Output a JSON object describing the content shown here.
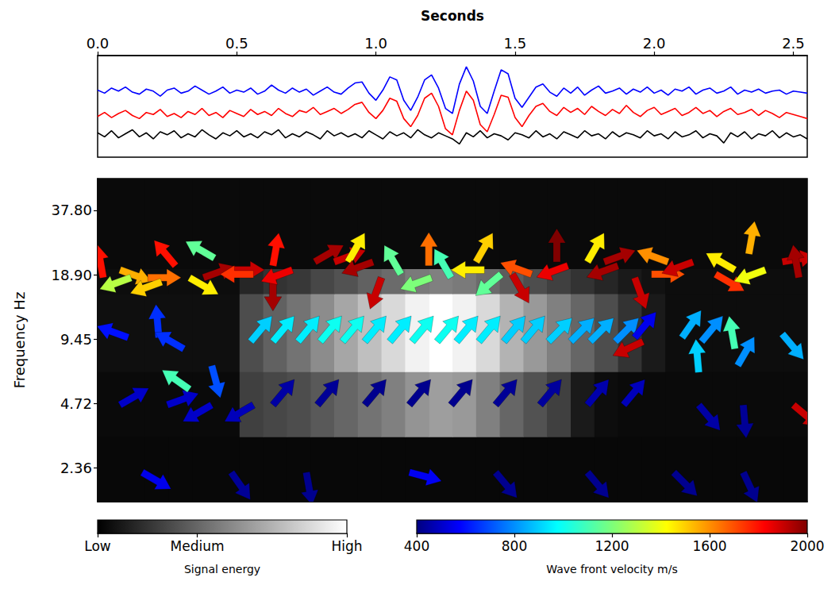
{
  "chart_data": [
    {
      "type": "line",
      "xlabel": "Seconds",
      "x": [
        0,
        0.025,
        0.05,
        0.075,
        0.1,
        0.125,
        0.15,
        0.175,
        0.2,
        0.225,
        0.25,
        0.275,
        0.3,
        0.325,
        0.35,
        0.375,
        0.4,
        0.425,
        0.45,
        0.475,
        0.5,
        0.525,
        0.55,
        0.575,
        0.6,
        0.625,
        0.65,
        0.675,
        0.7,
        0.725,
        0.75,
        0.775,
        0.8,
        0.825,
        0.85,
        0.875,
        0.9,
        0.925,
        0.95,
        0.975,
        1,
        1.025,
        1.05,
        1.075,
        1.1,
        1.125,
        1.15,
        1.175,
        1.2,
        1.225,
        1.25,
        1.275,
        1.3,
        1.325,
        1.35,
        1.375,
        1.4,
        1.425,
        1.45,
        1.475,
        1.5,
        1.525,
        1.55,
        1.575,
        1.6,
        1.625,
        1.65,
        1.675,
        1.7,
        1.725,
        1.75,
        1.775,
        1.8,
        1.825,
        1.85,
        1.875,
        1.9,
        1.925,
        1.95,
        1.975,
        2,
        2.025,
        2.05,
        2.075,
        2.1,
        2.125,
        2.15,
        2.175,
        2.2,
        2.225,
        2.25,
        2.275,
        2.3,
        2.325,
        2.35,
        2.375,
        2.4,
        2.425,
        2.45,
        2.475,
        2.5,
        2.525,
        2.55
      ],
      "xlim": [
        0,
        2.55
      ],
      "xticks": [
        {
          "value": 0,
          "label": "0.0"
        },
        0.5,
        {
          "value": 1,
          "label": "1.0"
        },
        1.5,
        {
          "value": 2,
          "label": "2.0"
        },
        2.5
      ],
      "ylim": [
        0,
        10
      ],
      "tick_labels": "x",
      "series": [
        {
          "color": "#0000ff",
          "values": [
            6.6,
            6.3,
            6.8,
            6.5,
            6.9,
            6.4,
            6.2,
            6.7,
            6.5,
            6.0,
            6.6,
            6.8,
            6.3,
            6.5,
            7.0,
            6.6,
            6.2,
            6.5,
            6.9,
            6.3,
            6.6,
            6.4,
            6.8,
            6.2,
            6.5,
            7.1,
            6.6,
            6.3,
            6.8,
            6.4,
            6.7,
            6.1,
            6.5,
            6.9,
            6.4,
            6.2,
            6.8,
            7.3,
            7.4,
            6.3,
            5.6,
            6.6,
            7.9,
            7.6,
            5.6,
            4.6,
            5.9,
            7.6,
            8.1,
            6.8,
            4.8,
            4.3,
            7.2,
            8.9,
            7.5,
            5.0,
            4.3,
            6.5,
            8.6,
            8.2,
            5.8,
            4.9,
            5.9,
            6.9,
            7.2,
            6.4,
            6.0,
            6.8,
            6.3,
            6.9,
            6.1,
            6.6,
            7.0,
            6.3,
            6.5,
            6.8,
            6.2,
            6.7,
            6.4,
            6.9,
            6.3,
            6.6,
            6.1,
            6.7,
            6.5,
            6.9,
            6.2,
            6.6,
            6.8,
            6.3,
            6.5,
            6.9,
            6.2,
            6.6,
            6.4,
            6.7,
            6.3,
            6.5,
            6.6,
            6.2,
            6.5,
            6.4,
            6.3
          ]
        },
        {
          "color": "#ff0000",
          "values": [
            4.0,
            4.4,
            3.9,
            4.3,
            4.6,
            4.1,
            3.8,
            4.4,
            4.2,
            4.7,
            4.0,
            4.3,
            3.9,
            4.5,
            4.2,
            4.8,
            4.1,
            4.4,
            3.9,
            4.6,
            4.3,
            4.0,
            4.7,
            4.2,
            4.5,
            4.1,
            4.8,
            4.3,
            4.0,
            4.6,
            4.4,
            4.9,
            4.2,
            4.5,
            4.8,
            4.3,
            4.7,
            5.2,
            5.4,
            4.4,
            3.8,
            4.6,
            5.8,
            5.5,
            3.8,
            3.0,
            4.1,
            5.8,
            6.3,
            5.0,
            2.8,
            2.2,
            4.6,
            6.5,
            5.6,
            3.2,
            2.5,
            4.2,
            6.1,
            5.9,
            3.9,
            3.0,
            4.1,
            5.0,
            5.3,
            4.5,
            4.1,
            4.9,
            4.4,
            4.8,
            4.2,
            5.0,
            4.5,
            4.1,
            4.7,
            4.3,
            5.1,
            4.4,
            4.0,
            4.6,
            4.9,
            4.2,
            4.5,
            4.8,
            4.1,
            4.4,
            4.9,
            4.3,
            4.6,
            4.0,
            4.5,
            4.8,
            4.2,
            4.4,
            4.7,
            4.1,
            4.6,
            4.3,
            3.9,
            4.4,
            4.2,
            4.0,
            3.8
          ]
        },
        {
          "color": "#000000",
          "values": [
            2.4,
            2.0,
            2.6,
            1.9,
            2.3,
            2.7,
            2.0,
            2.4,
            1.8,
            2.5,
            2.2,
            2.6,
            1.9,
            2.3,
            2.0,
            2.7,
            2.2,
            1.8,
            2.4,
            2.1,
            2.6,
            2.0,
            2.3,
            1.9,
            2.5,
            2.2,
            2.7,
            1.9,
            2.3,
            2.0,
            2.5,
            2.2,
            1.8,
            2.6,
            2.1,
            2.4,
            2.0,
            2.3,
            1.9,
            2.6,
            2.2,
            1.8,
            2.5,
            2.1,
            2.4,
            1.9,
            2.7,
            2.2,
            1.9,
            2.4,
            2.1,
            1.8,
            1.3,
            2.4,
            2.0,
            2.6,
            1.9,
            2.3,
            2.1,
            1.7,
            2.4,
            2.2,
            1.9,
            2.6,
            2.0,
            2.3,
            1.8,
            2.5,
            2.2,
            1.9,
            2.6,
            2.1,
            2.3,
            1.8,
            2.5,
            2.0,
            2.4,
            2.2,
            1.9,
            2.6,
            2.1,
            2.3,
            1.8,
            2.5,
            2.0,
            2.2,
            2.6,
            1.9,
            2.3,
            2.1,
            1.4,
            2.4,
            2.0,
            2.5,
            1.8,
            2.3,
            2.1,
            2.6,
            1.9,
            2.4,
            2.0,
            2.2,
            1.8
          ]
        }
      ]
    },
    {
      "type": "heatmap",
      "ylabel": "Frequency Hz",
      "xlim": [
        0,
        2.55
      ],
      "ylim": [
        1.64,
        53.2
      ],
      "log": "y",
      "yticks": [
        2.36,
        4.72,
        9.45,
        {
          "value": 18.9,
          "label": "18.90"
        },
        {
          "value": 37.8,
          "label": "37.80"
        }
      ],
      "tick_labels": "y",
      "energy": {
        "time_edges": [
          0,
          0.085,
          0.17,
          0.255,
          0.34,
          0.425,
          0.51,
          0.595,
          0.68,
          0.765,
          0.85,
          0.935,
          1.02,
          1.105,
          1.19,
          1.275,
          1.36,
          1.445,
          1.53,
          1.615,
          1.7,
          1.785,
          1.87,
          1.955,
          2.04,
          2.125,
          2.21,
          2.295,
          2.38,
          2.465,
          2.55
        ],
        "frequency_edges": [
          1.64,
          3.3,
          6.66,
          15.4,
          20.2,
          53.2
        ],
        "values": [
          [
            0.03,
            0.03,
            0.03,
            0.03,
            0.03,
            0.03,
            0.03,
            0.03,
            0.03,
            0.03,
            0.03,
            0.03,
            0.03,
            0.03,
            0.03,
            0.03,
            0.03,
            0.03,
            0.03,
            0.03,
            0.03,
            0.03,
            0.03,
            0.03,
            0.03,
            0.03,
            0.03,
            0.03,
            0.03,
            0.03
          ],
          [
            0.04,
            0.04,
            0.04,
            0.04,
            0.04,
            0.04,
            0.25,
            0.28,
            0.3,
            0.35,
            0.4,
            0.45,
            0.5,
            0.58,
            0.62,
            0.6,
            0.5,
            0.4,
            0.32,
            0.25,
            0.1,
            0.05,
            0.04,
            0.04,
            0.04,
            0.04,
            0.04,
            0.04,
            0.04,
            0.04
          ],
          [
            0.06,
            0.06,
            0.06,
            0.06,
            0.06,
            0.06,
            0.3,
            0.38,
            0.45,
            0.55,
            0.65,
            0.75,
            0.85,
            0.95,
            1.0,
            0.95,
            0.85,
            0.7,
            0.6,
            0.5,
            0.4,
            0.3,
            0.2,
            0.1,
            0.05,
            0.05,
            0.05,
            0.05,
            0.05,
            0.05
          ],
          [
            0.05,
            0.05,
            0.05,
            0.05,
            0.05,
            0.05,
            0.15,
            0.2,
            0.22,
            0.28,
            0.32,
            0.38,
            0.42,
            0.48,
            0.5,
            0.48,
            0.42,
            0.36,
            0.3,
            0.25,
            0.2,
            0.15,
            0.1,
            0.07,
            0.05,
            0.05,
            0.05,
            0.05,
            0.05,
            0.05
          ],
          [
            0.04,
            0.04,
            0.04,
            0.04,
            0.04,
            0.04,
            0.04,
            0.04,
            0.04,
            0.04,
            0.04,
            0.04,
            0.04,
            0.04,
            0.04,
            0.04,
            0.04,
            0.04,
            0.04,
            0.04,
            0.04,
            0.04,
            0.04,
            0.04,
            0.04,
            0.04,
            0.04,
            0.04,
            0.04,
            0.04
          ]
        ]
      },
      "arrows": {
        "time": [
          0.02,
          0.08,
          0.12,
          0.18,
          0.23,
          0.28,
          0.33,
          0.38,
          0.42,
          0.48,
          0.56,
          0.63,
          0.63,
          0.7,
          0.78,
          0.85,
          0.9,
          0.99,
          1.02,
          1.09,
          1.19,
          1.2,
          1.27,
          1.36,
          1.39,
          1.45,
          1.49,
          1.56,
          1.65,
          1.69,
          1.76,
          1.82,
          1.87,
          1.93,
          1.99,
          2.05,
          2.14,
          2.22,
          2.29,
          2.34,
          2.4,
          2.46,
          2.52,
          0.55,
          0.63,
          0.72,
          0.8,
          0.88,
          0.96,
          1.05,
          1.13,
          1.22,
          1.29,
          1.37,
          1.46,
          1.53,
          1.62,
          1.7,
          1.77,
          1.86,
          0.11,
          0.22,
          0.31,
          0.41,
          1.93,
          1.96,
          2.1,
          2.17,
          2.3,
          2.29,
          2.46,
          0.63,
          0.79,
          0.96,
          1.12,
          1.27,
          1.43,
          1.59,
          1.76,
          1.89,
          0.08,
          0.25,
          0.33,
          0.41,
          0.56,
          2.16,
          2.16,
          2.32,
          2.5,
          0.16,
          0.48,
          0.75,
          1.12,
          1.43,
          1.76,
          2.07,
          2.32
        ],
        "frequency": [
          18.3,
          19.9,
          18.3,
          18.3,
          17.5,
          20.8,
          18.3,
          18.3,
          22.6,
          19.9,
          19.0,
          20.8,
          18.3,
          19.9,
          21.7,
          21.7,
          21.7,
          21.7,
          18.3,
          19.0,
          20.8,
          18.3,
          18.3,
          21.7,
          19.9,
          19.0,
          19.0,
          19.0,
          21.7,
          20.8,
          21.7,
          21.7,
          20.8,
          18.3,
          19.0,
          21.7,
          21.7,
          19.0,
          19.9,
          23.6,
          19.9,
          21.7,
          18.3,
          9.2,
          9.2,
          9.2,
          9.2,
          9.2,
          9.2,
          9.2,
          9.2,
          9.2,
          9.2,
          9.2,
          9.2,
          9.2,
          9.2,
          9.2,
          9.2,
          9.2,
          9.6,
          9.6,
          8.5,
          7.1,
          9.6,
          9.2,
          9.6,
          9.2,
          7.1,
          8.5,
          10.0,
          4.65,
          4.65,
          4.65,
          4.65,
          4.65,
          4.65,
          4.65,
          4.65,
          4.65,
          4.65,
          4.65,
          5.5,
          4.65,
          4.65,
          6.6,
          4.65,
          4.65,
          4.65,
          2.25,
          2.25,
          2.25,
          2.25,
          2.25,
          2.25,
          2.25,
          2.25
        ],
        "direction": [
          100,
          -20,
          200,
          0,
          200,
          130,
          -30,
          20,
          150,
          0,
          180,
          80,
          -90,
          200,
          30,
          20,
          60,
          200,
          250,
          120,
          90,
          200,
          120,
          60,
          180,
          220,
          -60,
          160,
          90,
          200,
          60,
          20,
          200,
          -70,
          0,
          160,
          200,
          -30,
          150,
          80,
          200,
          10,
          100,
          50,
          50,
          50,
          50,
          50,
          50,
          50,
          50,
          50,
          50,
          50,
          50,
          50,
          45,
          45,
          45,
          45,
          160,
          95,
          150,
          -75,
          50,
          205,
          55,
          50,
          60,
          100,
          -50,
          50,
          50,
          50,
          50,
          50,
          50,
          50,
          50,
          50,
          30,
          20,
          145,
          210,
          210,
          95,
          -50,
          -85,
          -40,
          -30,
          -55,
          -80,
          -15,
          -50,
          -50,
          -45,
          -65
        ],
        "velocity": [
          1800,
          1550,
          1300,
          1650,
          1500,
          1800,
          1450,
          1950,
          1150,
          1900,
          1750,
          1800,
          1950,
          1850,
          1950,
          1900,
          1450,
          1950,
          1900,
          1150,
          1650,
          1200,
          1100,
          1500,
          1450,
          1150,
          1900,
          1700,
          2000,
          1850,
          1450,
          1950,
          1950,
          1900,
          1700,
          1600,
          1900,
          1750,
          1450,
          1550,
          1400,
          1900,
          1950,
          900,
          950,
          950,
          1000,
          1000,
          950,
          950,
          1000,
          1000,
          950,
          950,
          900,
          900,
          900,
          850,
          850,
          800,
          600,
          650,
          650,
          700,
          550,
          1900,
          850,
          800,
          800,
          1100,
          850,
          450,
          430,
          420,
          420,
          420,
          430,
          440,
          460,
          480,
          500,
          500,
          1100,
          500,
          480,
          900,
          450,
          430,
          1900,
          550,
          430,
          420,
          560,
          420,
          420,
          420,
          420
        ]
      },
      "energy_colorbar": {
        "label": "Signal energy",
        "range": [
          0,
          1
        ],
        "ticks": [
          {
            "value": 0,
            "label": "Low"
          },
          {
            "value": 0.4,
            "label": "Medium"
          },
          {
            "value": 1,
            "label": "High"
          }
        ]
      },
      "velocity_colorbar": {
        "label": "Wave front velocity m/s",
        "range": [
          400,
          2000
        ],
        "ticks": [
          400,
          800,
          1200,
          1600,
          2000
        ]
      }
    }
  ]
}
